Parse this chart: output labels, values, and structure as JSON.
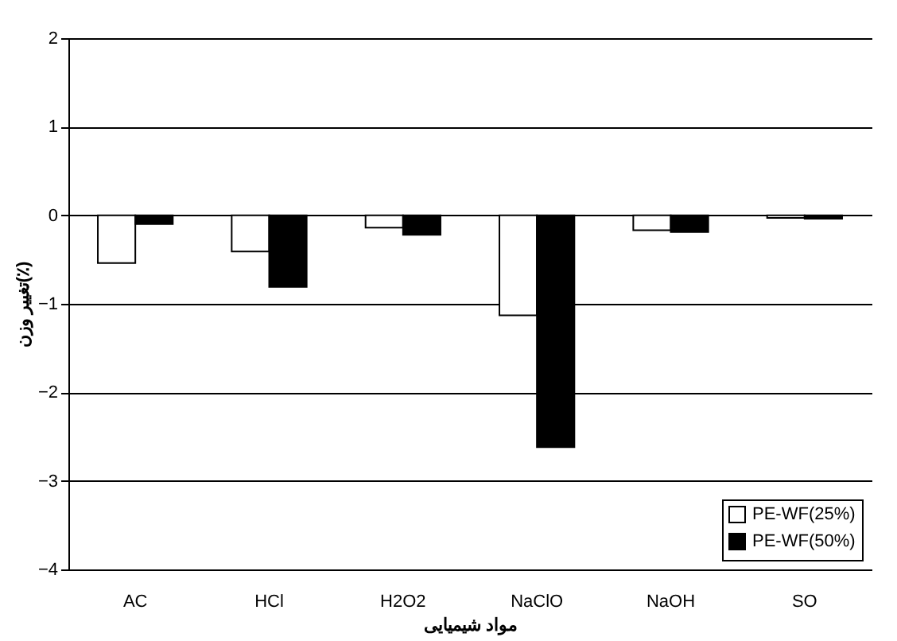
{
  "chart_data": {
    "type": "bar",
    "xlabel": "مواد شیمیایی",
    "ylabel": "تغییر وزن(٪)",
    "categories": [
      "AC",
      "HCl",
      "H2O2",
      "NaClO",
      "NaOH",
      "SO"
    ],
    "series": [
      {
        "name": "PE-WF(25%)",
        "color": "#ffffff",
        "values": [
          -0.54,
          -0.41,
          -0.14,
          -1.13,
          -0.17,
          -0.03
        ]
      },
      {
        "name": "PE-WF(50%)",
        "color": "#000000",
        "values": [
          -0.1,
          -0.81,
          -0.22,
          -2.62,
          -0.19,
          -0.04
        ]
      }
    ],
    "ylim": [
      -4,
      2
    ],
    "yticks": [
      -4,
      -3,
      -2,
      -1,
      0,
      1,
      2
    ],
    "grid": "y",
    "legend": "bottom right"
  }
}
